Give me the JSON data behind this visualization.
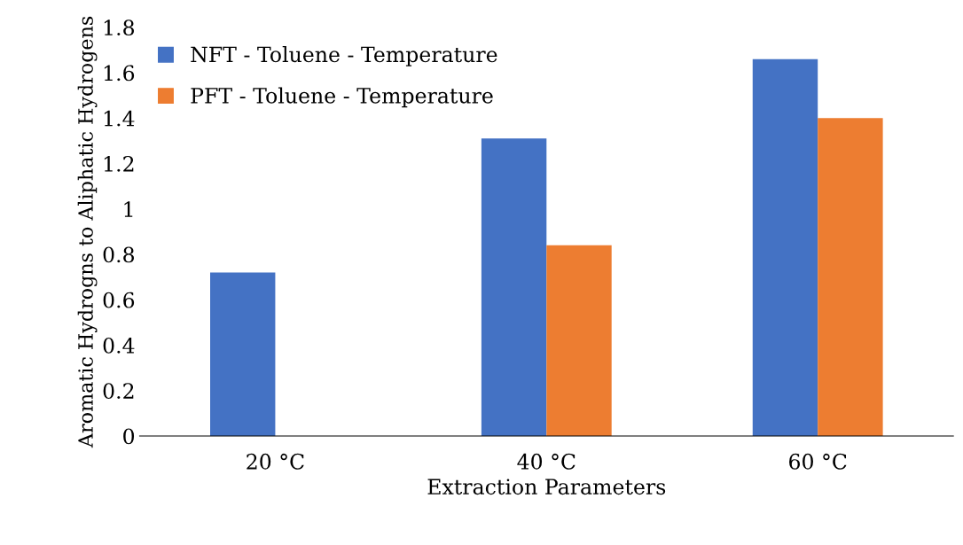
{
  "chart_data": {
    "type": "bar",
    "xlabel": "Extraction Parameters",
    "ylabel": "Aromatic Hydrogns to Aliphatic Hydrogens",
    "categories": [
      "20 °C",
      "40 °C",
      "60 °C"
    ],
    "series": [
      {
        "name": "NFT - Toluene - Temperature",
        "color": "#4472c4",
        "values": [
          0.72,
          1.31,
          1.66
        ]
      },
      {
        "name": "PFT - Toluene - Temperature",
        "color": "#ed7d31",
        "values": [
          null,
          0.84,
          1.4
        ]
      }
    ],
    "ylim": [
      0,
      1.8
    ],
    "yticks": [
      0,
      0.2,
      0.4,
      0.6,
      0.8,
      1,
      1.2,
      1.4,
      1.6,
      1.8
    ],
    "grid": false,
    "legend": "top left"
  }
}
